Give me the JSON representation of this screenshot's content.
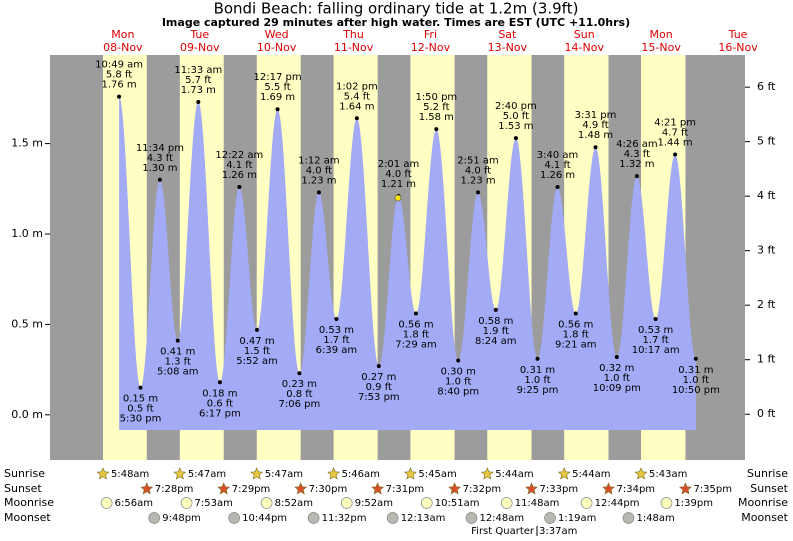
{
  "chart_data": {
    "type": "tide",
    "title": "Bondi Beach: falling  ordinary tide at 1.2m (3.9ft)",
    "subtitle": "Image captured 29 minutes after high water. Times are EST (UTC +11.0hrs)",
    "color": "#a3abf6",
    "ylim": [
      -0.25,
      1.99
    ],
    "yticks": [
      {
        "value": 0,
        "label": "0.0 m"
      },
      {
        "value": 0.5,
        "label": "0.5 m"
      },
      {
        "value": 1.0,
        "label": "1.0 m"
      },
      {
        "value": 1.5,
        "label": "1.5 m"
      }
    ],
    "y2lim": [
      -0.84,
      6.59
    ],
    "y2ticks": [
      {
        "value": 0,
        "label": "0 ft"
      },
      {
        "value": 1,
        "label": "1 ft"
      },
      {
        "value": 2,
        "label": "2 ft"
      },
      {
        "value": 3,
        "label": "3 ft"
      },
      {
        "value": 4,
        "label": "4 ft"
      },
      {
        "value": 5,
        "label": "5 ft"
      },
      {
        "value": 6,
        "label": "6 ft"
      }
    ],
    "row_labels": {
      "sunrise": "Sunrise",
      "sunset": "Sunset",
      "moonrise": "Moonrise",
      "moonset": "Moonset"
    },
    "moon_phase": "First Quarter",
    "moon_phase_time": "3:37am",
    "days": [
      {
        "weekday": "Mon",
        "date": "08-Nov",
        "sunrise": "5:48am",
        "sunset": "7:28pm",
        "moonrise": "6:56am",
        "moonset": "9:48pm",
        "tides": [
          {
            "kind": "high",
            "time": "10:49 am",
            "height_m": 1.76,
            "label_ft": "5.8 ft",
            "label_m": "1.76 m"
          },
          {
            "kind": "low",
            "time": "5:30 pm",
            "height_m": 0.15,
            "label_ft": "0.5 ft",
            "label_m": "0.15 m"
          },
          {
            "kind": "high",
            "time": "11:34 pm",
            "height_m": 1.3,
            "label_ft": "4.3 ft",
            "label_m": "1.30 m"
          }
        ]
      },
      {
        "weekday": "Tue",
        "date": "09-Nov",
        "sunrise": "5:47am",
        "sunset": "7:29pm",
        "moonrise": "7:53am",
        "moonset": "10:44pm",
        "tides": [
          {
            "kind": "low",
            "time": "5:08 am",
            "height_m": 0.41,
            "label_ft": "1.3 ft",
            "label_m": "0.41 m"
          },
          {
            "kind": "high",
            "time": "11:33 am",
            "height_m": 1.73,
            "label_ft": "5.7 ft",
            "label_m": "1.73 m"
          },
          {
            "kind": "low",
            "time": "6:17 pm",
            "height_m": 0.18,
            "label_ft": "0.6 ft",
            "label_m": "0.18 m"
          }
        ]
      },
      {
        "weekday": "Wed",
        "date": "10-Nov",
        "sunrise": "5:47am",
        "sunset": "7:30pm",
        "moonrise": "8:52am",
        "moonset": "11:32pm",
        "tides": [
          {
            "kind": "high",
            "time": "12:22 am",
            "height_m": 1.26,
            "label_ft": "4.1 ft",
            "label_m": "1.26 m"
          },
          {
            "kind": "low",
            "time": "5:52 am",
            "height_m": 0.47,
            "label_ft": "1.5 ft",
            "label_m": "0.47 m"
          },
          {
            "kind": "high",
            "time": "12:17 pm",
            "height_m": 1.69,
            "label_ft": "5.5 ft",
            "label_m": "1.69 m"
          },
          {
            "kind": "low",
            "time": "7:06 pm",
            "height_m": 0.23,
            "label_ft": "0.8 ft",
            "label_m": "0.23 m"
          }
        ]
      },
      {
        "weekday": "Thu",
        "date": "11-Nov",
        "sunrise": "5:46am",
        "sunset": "7:31pm",
        "moonrise": "9:52am",
        "tides": [
          {
            "kind": "high",
            "time": "1:12 am",
            "height_m": 1.23,
            "label_ft": "4.0 ft",
            "label_m": "1.23 m"
          },
          {
            "kind": "low",
            "time": "6:39 am",
            "height_m": 0.53,
            "label_ft": "1.7 ft",
            "label_m": "0.53 m"
          },
          {
            "kind": "high",
            "time": "1:02 pm",
            "height_m": 1.64,
            "label_ft": "5.4 ft",
            "label_m": "1.64 m"
          },
          {
            "kind": "low",
            "time": "7:53 pm",
            "height_m": 0.27,
            "label_ft": "0.9 ft",
            "label_m": "0.27 m"
          }
        ]
      },
      {
        "weekday": "Fri",
        "date": "12-Nov",
        "sunrise": "5:45am",
        "sunset": "7:32pm",
        "moonrise": "10:51am",
        "moonset": "12:13am",
        "tides": [
          {
            "kind": "high",
            "time": "2:01 am",
            "height_m": 1.21,
            "label_ft": "4.0 ft",
            "label_m": "1.21 m"
          },
          {
            "kind": "low",
            "time": "7:29 am",
            "height_m": 0.56,
            "label_ft": "1.8 ft",
            "label_m": "0.56 m"
          },
          {
            "kind": "high",
            "time": "1:50 pm",
            "height_m": 1.58,
            "label_ft": "5.2 ft",
            "label_m": "1.58 m"
          },
          {
            "kind": "low",
            "time": "8:40 pm",
            "height_m": 0.3,
            "label_ft": "1.0 ft",
            "label_m": "0.30 m"
          }
        ]
      },
      {
        "weekday": "Sat",
        "date": "13-Nov",
        "sunrise": "5:44am",
        "sunset": "7:33pm",
        "moonrise": "11:48am",
        "moonset": "12:48am",
        "tides": [
          {
            "kind": "high",
            "time": "2:51 am",
            "height_m": 1.23,
            "label_ft": "4.0 ft",
            "label_m": "1.23 m"
          },
          {
            "kind": "low",
            "time": "8:24 am",
            "height_m": 0.58,
            "label_ft": "1.9 ft",
            "label_m": "0.58 m"
          },
          {
            "kind": "high",
            "time": "2:40 pm",
            "height_m": 1.53,
            "label_ft": "5.0 ft",
            "label_m": "1.53 m"
          },
          {
            "kind": "low",
            "time": "9:25 pm",
            "height_m": 0.31,
            "label_ft": "1.0 ft",
            "label_m": "0.31 m"
          }
        ]
      },
      {
        "weekday": "Sun",
        "date": "14-Nov",
        "sunrise": "5:44am",
        "sunset": "7:34pm",
        "moonrise": "12:44pm",
        "moonset": "1:19am",
        "tides": [
          {
            "kind": "high",
            "time": "3:40 am",
            "height_m": 1.26,
            "label_ft": "4.1 ft",
            "label_m": "1.26 m"
          },
          {
            "kind": "low",
            "time": "9:21 am",
            "height_m": 0.56,
            "label_ft": "1.8 ft",
            "label_m": "0.56 m"
          },
          {
            "kind": "high",
            "time": "3:31 pm",
            "height_m": 1.48,
            "label_ft": "4.9 ft",
            "label_m": "1.48 m"
          },
          {
            "kind": "low",
            "time": "10:09 pm",
            "height_m": 0.32,
            "label_ft": "1.0 ft",
            "label_m": "0.32 m"
          }
        ]
      },
      {
        "weekday": "Mon",
        "date": "15-Nov",
        "sunrise": "5:43am",
        "sunset": "7:35pm",
        "moonrise": "1:39pm",
        "moonset": "1:48am",
        "tides": [
          {
            "kind": "high",
            "time": "4:26 am",
            "height_m": 1.32,
            "label_ft": "4.3 ft",
            "label_m": "1.32 m"
          },
          {
            "kind": "low",
            "time": "10:17 am",
            "height_m": 0.53,
            "label_ft": "1.7 ft",
            "label_m": "0.53 m"
          },
          {
            "kind": "high",
            "time": "4:21 pm",
            "height_m": 1.44,
            "label_ft": "4.7 ft",
            "label_m": "1.44 m"
          },
          {
            "kind": "low",
            "time": "10:50 pm",
            "height_m": 0.31,
            "label_ft": "1.0 ft",
            "label_m": "0.31 m"
          }
        ]
      },
      {
        "weekday": "Tue",
        "date": "16-Nov"
      }
    ]
  }
}
